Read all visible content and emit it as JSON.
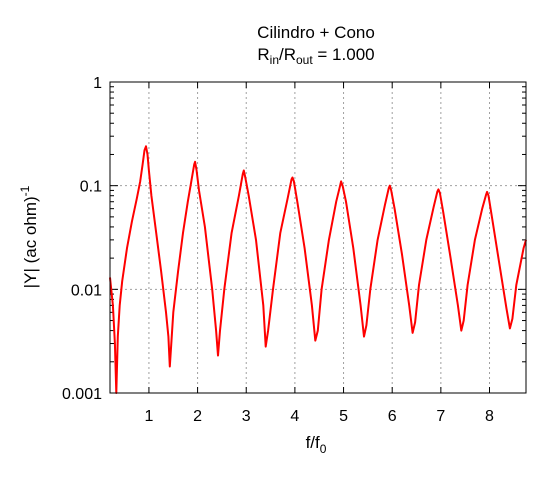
{
  "chart_data": {
    "type": "line",
    "title": {
      "line1": "Cilindro + Cono",
      "line2_prefix": "R",
      "line2_sub1": "in",
      "line2_mid": "/R",
      "line2_sub2": "out",
      "line2_suffix": " = 1.000"
    },
    "xlabel": {
      "base": "f/f",
      "sub": "0"
    },
    "ylabel": {
      "text": "|Y| (ac ohm)",
      "sup": "-1"
    },
    "xlim": [
      0.2,
      8.75
    ],
    "ylim": [
      0.001,
      1
    ],
    "yscale": "log",
    "grid": true,
    "xticks": [
      1,
      2,
      3,
      4,
      5,
      6,
      7,
      8
    ],
    "xtick_labels": [
      "1",
      "2",
      "3",
      "4",
      "5",
      "6",
      "7",
      "8"
    ],
    "yticks": [
      0.001,
      0.01,
      0.1,
      1
    ],
    "ytick_labels": [
      "0.001",
      "0.01",
      "0.1",
      "1"
    ],
    "series": [
      {
        "color": "#ff0000",
        "x": [
          0.2,
          0.26,
          0.3,
          0.33,
          0.36,
          0.4,
          0.45,
          0.55,
          0.65,
          0.75,
          0.82,
          0.87,
          0.91,
          0.94,
          0.97,
          1.0,
          1.05,
          1.15,
          1.25,
          1.35,
          1.4,
          1.43,
          1.46,
          1.5,
          1.6,
          1.7,
          1.8,
          1.87,
          1.93,
          1.95,
          1.98,
          2.03,
          2.15,
          2.3,
          2.38,
          2.42,
          2.46,
          2.55,
          2.7,
          2.85,
          2.93,
          2.95,
          2.98,
          3.05,
          3.2,
          3.35,
          3.4,
          3.45,
          3.55,
          3.7,
          3.85,
          3.93,
          3.95,
          3.98,
          4.05,
          4.2,
          4.35,
          4.42,
          4.47,
          4.55,
          4.7,
          4.85,
          4.93,
          4.95,
          4.98,
          5.05,
          5.2,
          5.35,
          5.42,
          5.47,
          5.55,
          5.7,
          5.85,
          5.93,
          5.95,
          5.98,
          6.05,
          6.2,
          6.35,
          6.42,
          6.47,
          6.55,
          6.7,
          6.85,
          6.93,
          6.95,
          6.98,
          7.05,
          7.2,
          7.35,
          7.42,
          7.47,
          7.55,
          7.7,
          7.85,
          7.93,
          7.95,
          7.98,
          8.05,
          8.2,
          8.35,
          8.42,
          8.47,
          8.55,
          8.7,
          8.75
        ],
        "y": [
          0.013,
          0.007,
          0.003,
          0.0009,
          0.0035,
          0.007,
          0.012,
          0.025,
          0.045,
          0.075,
          0.11,
          0.16,
          0.22,
          0.24,
          0.2,
          0.14,
          0.08,
          0.035,
          0.015,
          0.006,
          0.0035,
          0.0018,
          0.003,
          0.006,
          0.015,
          0.035,
          0.07,
          0.11,
          0.16,
          0.17,
          0.14,
          0.09,
          0.04,
          0.01,
          0.004,
          0.0023,
          0.004,
          0.01,
          0.035,
          0.08,
          0.13,
          0.14,
          0.12,
          0.08,
          0.03,
          0.007,
          0.0028,
          0.004,
          0.01,
          0.035,
          0.075,
          0.115,
          0.12,
          0.11,
          0.07,
          0.025,
          0.007,
          0.0032,
          0.004,
          0.01,
          0.03,
          0.07,
          0.1,
          0.11,
          0.1,
          0.07,
          0.025,
          0.007,
          0.0035,
          0.0045,
          0.01,
          0.03,
          0.065,
          0.095,
          0.1,
          0.09,
          0.06,
          0.022,
          0.007,
          0.0038,
          0.0048,
          0.011,
          0.03,
          0.062,
          0.088,
          0.092,
          0.085,
          0.055,
          0.02,
          0.007,
          0.004,
          0.005,
          0.011,
          0.03,
          0.06,
          0.082,
          0.087,
          0.08,
          0.05,
          0.018,
          0.0065,
          0.0042,
          0.0052,
          0.011,
          0.025,
          0.03
        ]
      }
    ]
  }
}
